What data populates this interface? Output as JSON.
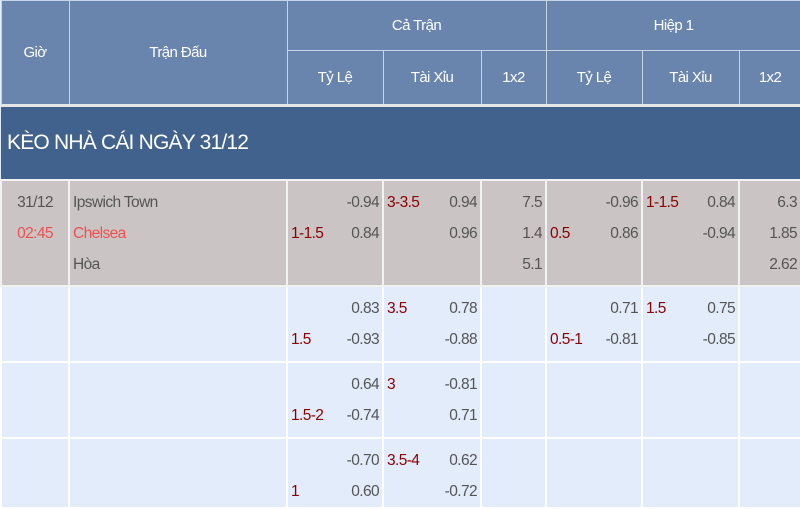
{
  "header": {
    "gio": "Giờ",
    "tran_dau": "Trận Đấu",
    "ca_tran": "Cả Trận",
    "hiep1": "Hiệp 1",
    "sub": [
      "Tỷ Lệ",
      "Tài Xỉu",
      "1x2",
      "Tỷ Lệ",
      "Tài Xỉu",
      "1x2"
    ]
  },
  "section_title": "KÈO NHÀ CÁI NGÀY 31/12",
  "match": {
    "date": "31/12",
    "time": "02:45",
    "home": "Ipswich Town",
    "away": "Chelsea",
    "draw": "Hòa"
  },
  "rows": [
    {
      "ft_hdp": {
        "line": "1-1.5",
        "values": [
          "-0.94",
          "0.84"
        ]
      },
      "ft_ou": {
        "line": "3-3.5",
        "values": [
          "0.94",
          "0.96"
        ]
      },
      "ft_1x2": [
        "7.5",
        "1.4",
        "5.1"
      ],
      "h1_hdp": {
        "line": "0.5",
        "values": [
          "-0.96",
          "0.86"
        ]
      },
      "h1_ou": {
        "line": "1-1.5",
        "values": [
          "0.84",
          "-0.94"
        ]
      },
      "h1_1x2": [
        "6.3",
        "1.85",
        "2.62"
      ]
    },
    {
      "ft_hdp": {
        "line": "1.5",
        "values": [
          "0.83",
          "-0.93"
        ]
      },
      "ft_ou": {
        "line": "3.5",
        "values": [
          "0.78",
          "-0.88"
        ]
      },
      "ft_1x2": [],
      "h1_hdp": {
        "line": "0.5-1",
        "values": [
          "0.71",
          "-0.81"
        ]
      },
      "h1_ou": {
        "line": "1.5",
        "values": [
          "0.75",
          "-0.85"
        ]
      },
      "h1_1x2": []
    },
    {
      "ft_hdp": {
        "line": "1.5-2",
        "values": [
          "0.64",
          "-0.74"
        ]
      },
      "ft_ou": {
        "line": "3",
        "values": [
          "-0.81",
          "0.71"
        ]
      },
      "ft_1x2": [],
      "h1_hdp": null,
      "h1_ou": null,
      "h1_1x2": []
    },
    {
      "ft_hdp": {
        "line": "1",
        "values": [
          "-0.70",
          "0.60"
        ]
      },
      "ft_ou": {
        "line": "3.5-4",
        "values": [
          "0.62",
          "-0.72"
        ]
      },
      "ft_1x2": [],
      "h1_hdp": null,
      "h1_ou": null,
      "h1_1x2": []
    }
  ],
  "colors": {
    "header_bg": "#6985ae",
    "section_bg": "#42628e",
    "line_color": "#8b0000",
    "time_color": "#f05050",
    "match_bg": "#cbc4c4",
    "row_bg": "#e2ecfa"
  }
}
